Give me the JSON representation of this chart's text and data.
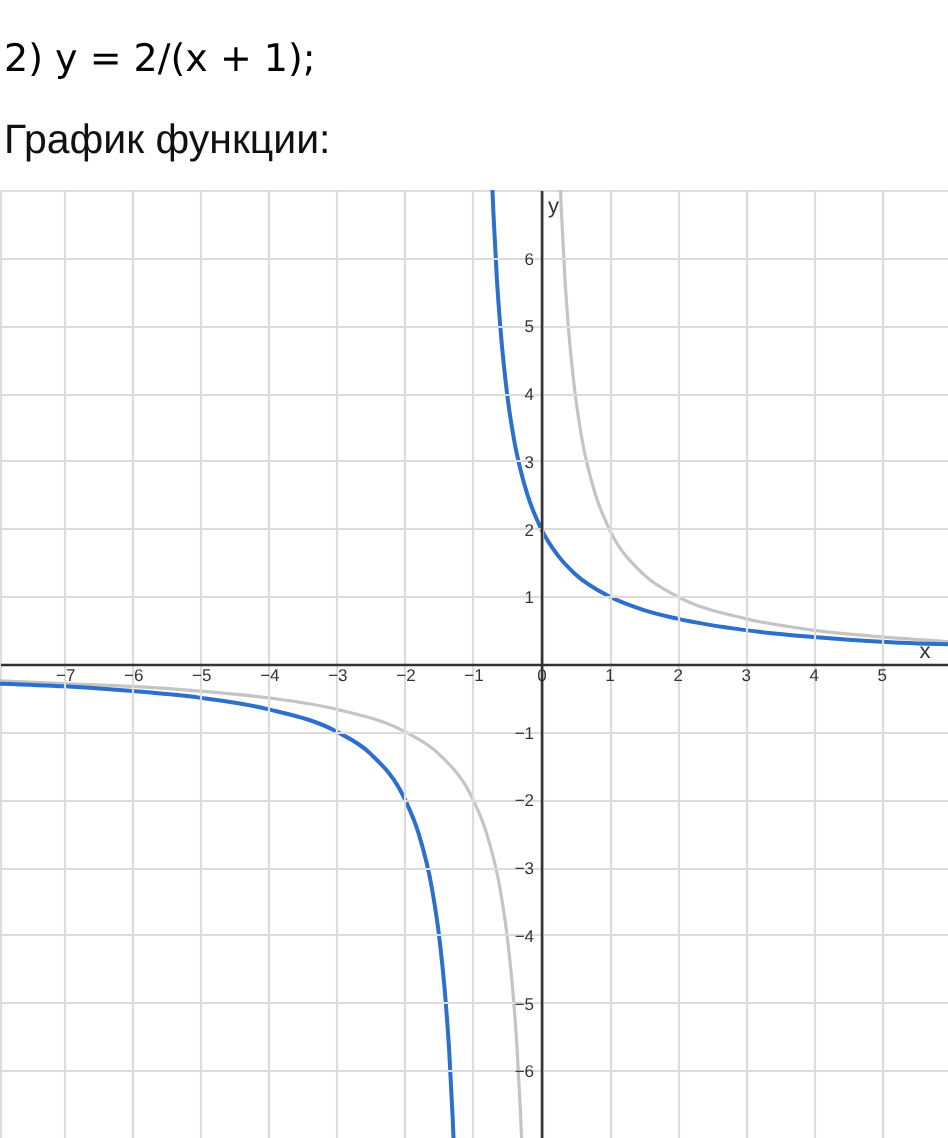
{
  "chart_data": {
    "type": "line",
    "title": "2) y = 2/(x + 1);",
    "subtitle": "График функции:",
    "xlabel": "x",
    "ylabel": "y",
    "xlim": [
      -7.95,
      5.98
    ],
    "ylim": [
      -7,
      7
    ],
    "xticks": [
      -7,
      -6,
      -5,
      -4,
      -3,
      -2,
      -1,
      0,
      1,
      2,
      3,
      4,
      5
    ],
    "yticks": [
      -6,
      -5,
      -4,
      -3,
      -2,
      -1,
      1,
      2,
      3,
      4,
      5,
      6
    ],
    "grid": true,
    "series": [
      {
        "color": "#c4c4c4",
        "x": [
          -7.95,
          -7,
          -6,
          -5,
          -4,
          -3,
          -2,
          -1.5,
          -1,
          -0.8,
          -0.6,
          -0.5,
          -0.4,
          -0.35,
          -0.3,
          -0.286,
          0,
          0.286,
          0.3,
          0.35,
          0.4,
          0.5,
          0.6,
          0.8,
          1,
          1.5,
          2,
          3,
          4,
          5,
          5.98
        ],
        "values": [
          -0.25,
          -0.29,
          -0.33,
          -0.4,
          -0.5,
          -0.67,
          -1,
          -1.33,
          -2,
          -2.5,
          -3.33,
          -4,
          -5,
          -5.71,
          -6.67,
          -7,
          null,
          7,
          6.67,
          5.71,
          5,
          4,
          3.33,
          2.5,
          2,
          1.33,
          1,
          0.67,
          0.5,
          0.4,
          0.33
        ]
      },
      {
        "color": "#2c6fcd",
        "x": [
          -7.95,
          -7,
          -6,
          -5,
          -4,
          -3,
          -2.5,
          -2,
          -1.8,
          -1.6,
          -1.5,
          -1.4,
          -1.35,
          -1.3,
          -1.286,
          -1,
          -0.714,
          -0.7,
          -0.65,
          -0.6,
          -0.5,
          -0.4,
          -0.3,
          -0.2,
          0,
          0.25,
          0.5,
          1,
          1.5,
          2,
          3,
          4,
          5,
          5.98
        ],
        "values": [
          -0.29,
          -0.33,
          -0.4,
          -0.5,
          -0.67,
          -1,
          -1.33,
          -2,
          -2.5,
          -3.33,
          -4,
          -5,
          -5.71,
          -6.67,
          -7,
          null,
          7,
          6.67,
          5.71,
          5,
          4,
          3.33,
          2.86,
          2.5,
          2,
          1.6,
          1.33,
          1,
          0.8,
          0.67,
          0.5,
          0.4,
          0.33,
          0.29
        ]
      }
    ]
  }
}
